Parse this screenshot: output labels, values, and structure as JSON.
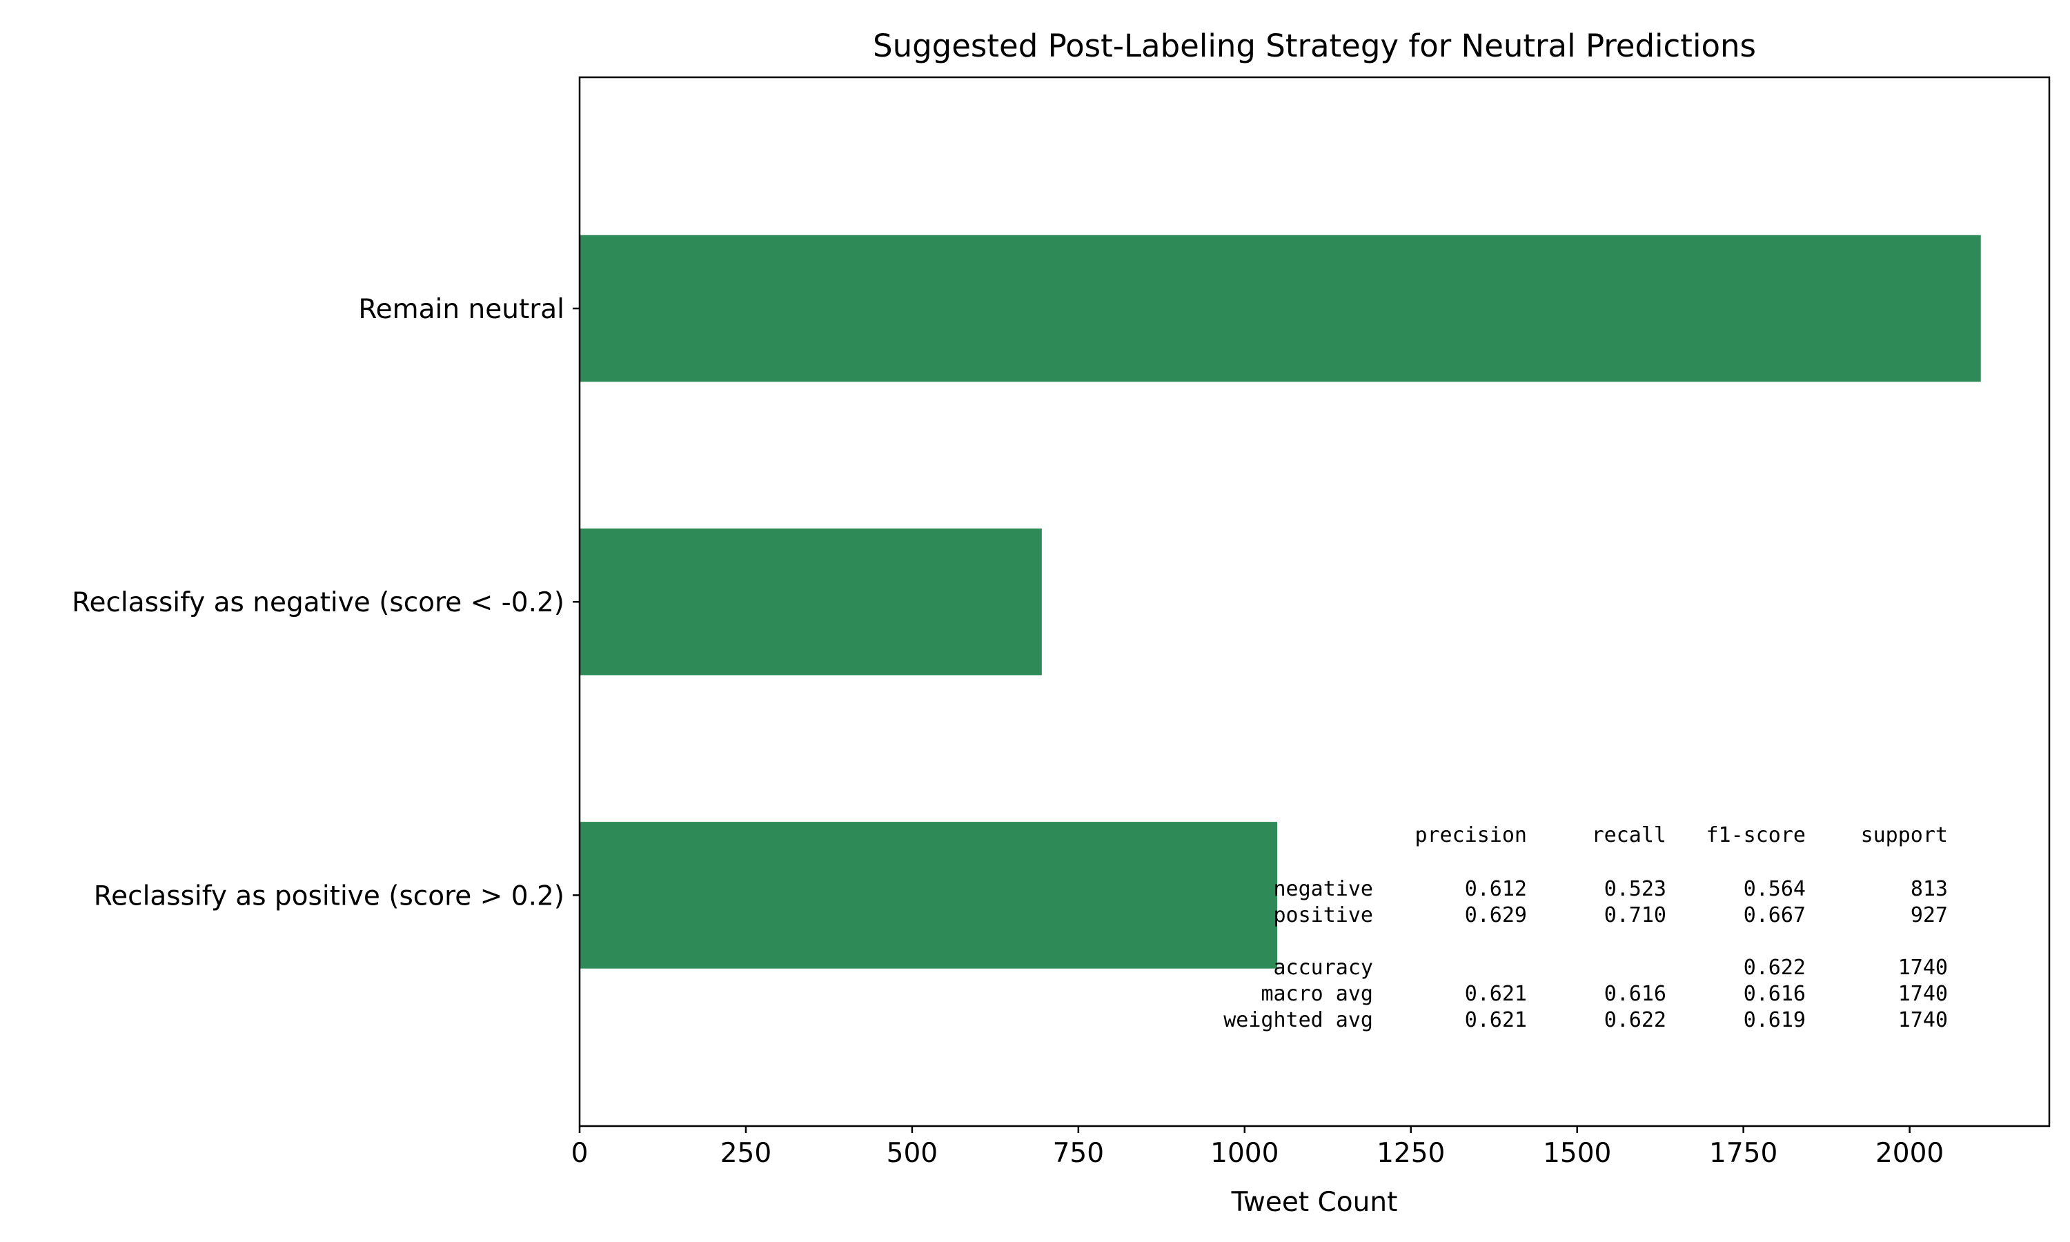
{
  "chart_data": {
    "type": "bar",
    "orientation": "horizontal",
    "title": "Suggested Post-Labeling Strategy for Neutral Predictions",
    "xlabel": "Tweet Count",
    "ylabel": "",
    "categories": [
      "Remain neutral",
      "Reclassify as negative (score < -0.2)",
      "Reclassify as positive (score > 0.2)"
    ],
    "values": [
      2107,
      695,
      1049
    ],
    "xlim": [
      0,
      2210
    ],
    "xticks": [
      0,
      250,
      500,
      750,
      1000,
      1250,
      1500,
      1750,
      2000
    ],
    "xtick_labels": [
      "0",
      "250",
      "500",
      "750",
      "1000",
      "1250",
      "1500",
      "1750",
      "2000"
    ],
    "bar_color": "#2e8b57",
    "grid": false,
    "legend": "none",
    "annotation": {
      "type": "classification_report",
      "header": [
        "precision",
        "recall",
        "f1-score",
        "support"
      ],
      "rows": [
        {
          "label": "negative",
          "precision": "0.612",
          "recall": "0.523",
          "f1": "0.564",
          "support": "813"
        },
        {
          "label": "positive",
          "precision": "0.629",
          "recall": "0.710",
          "f1": "0.667",
          "support": "927"
        },
        {
          "label": "",
          "precision": "",
          "recall": "",
          "f1": "",
          "support": ""
        },
        {
          "label": "accuracy",
          "precision": "",
          "recall": "",
          "f1": "0.622",
          "support": "1740"
        },
        {
          "label": "macro avg",
          "precision": "0.621",
          "recall": "0.616",
          "f1": "0.616",
          "support": "1740"
        },
        {
          "label": "weighted avg",
          "precision": "0.621",
          "recall": "0.622",
          "f1": "0.619",
          "support": "1740"
        }
      ]
    }
  }
}
